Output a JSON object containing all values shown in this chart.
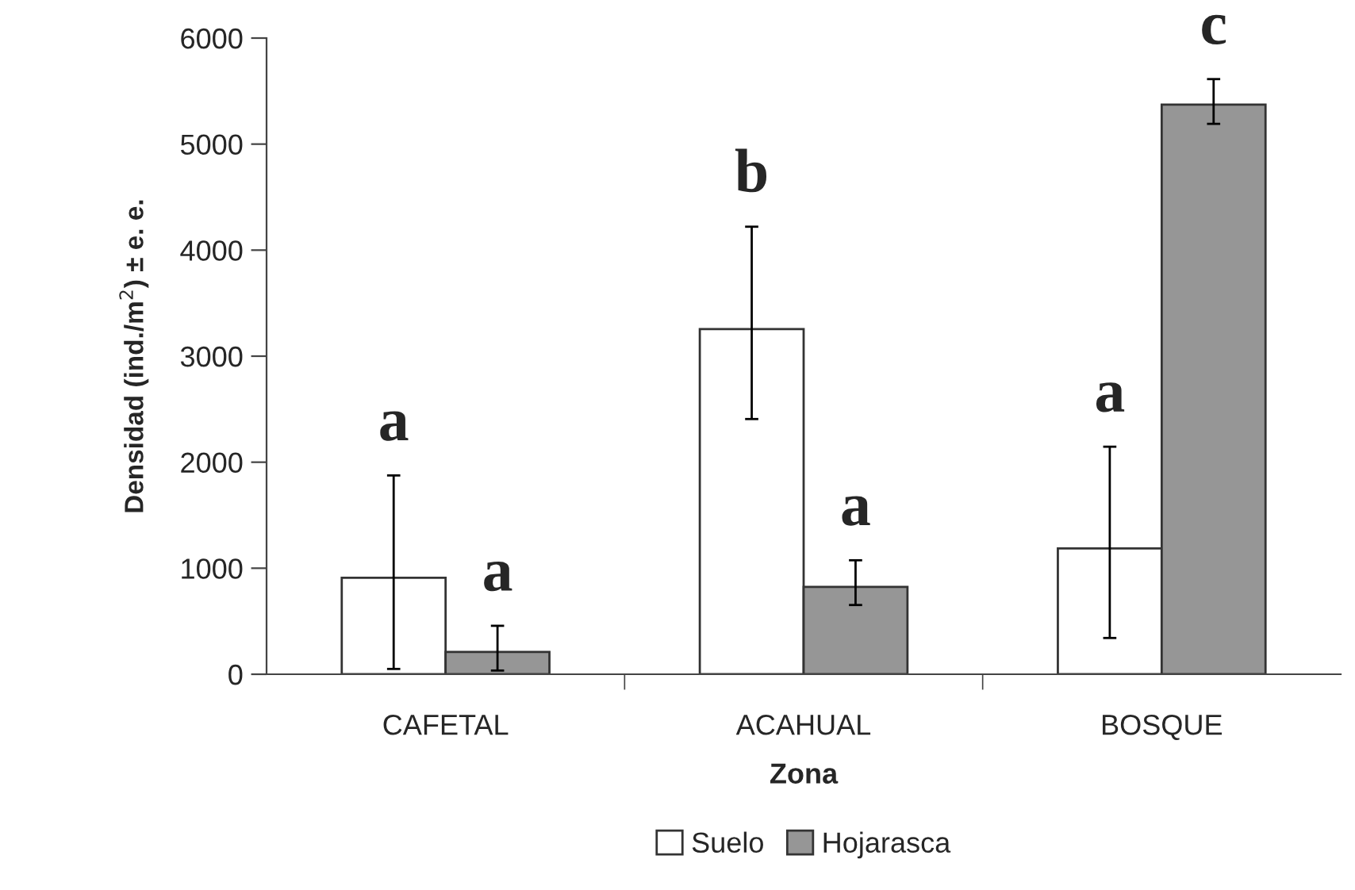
{
  "chart_data": {
    "type": "bar",
    "xlabel": "Zona",
    "ylabel": "Densidad (ind./m$^{2}$) ± e. e.",
    "categories": [
      "CAFETAL",
      "ACAHUAL",
      "BOSQUE"
    ],
    "series": [
      {
        "name": "Suelo",
        "color": "#ffffff",
        "values": [
          910,
          3256,
          1186
        ],
        "errors": [
          [
            50,
            1875
          ],
          [
            2407,
            4221
          ],
          [
            342,
            2146
          ]
        ],
        "value_labels": [
          "a",
          "b",
          "a"
        ]
      },
      {
        "name": "Hojarasca",
        "color": "#969696",
        "values": [
          211,
          824,
          5372
        ],
        "errors": [
          [
            35,
            457
          ],
          [
            653,
            1075
          ],
          [
            5191,
            5613
          ]
        ],
        "value_labels": [
          "a",
          "a",
          "c"
        ]
      }
    ],
    "ylim": [
      0,
      6000
    ],
    "yticks": [
      0,
      1000,
      2000,
      3000,
      4000,
      5000,
      6000
    ],
    "legend": "bottom"
  }
}
